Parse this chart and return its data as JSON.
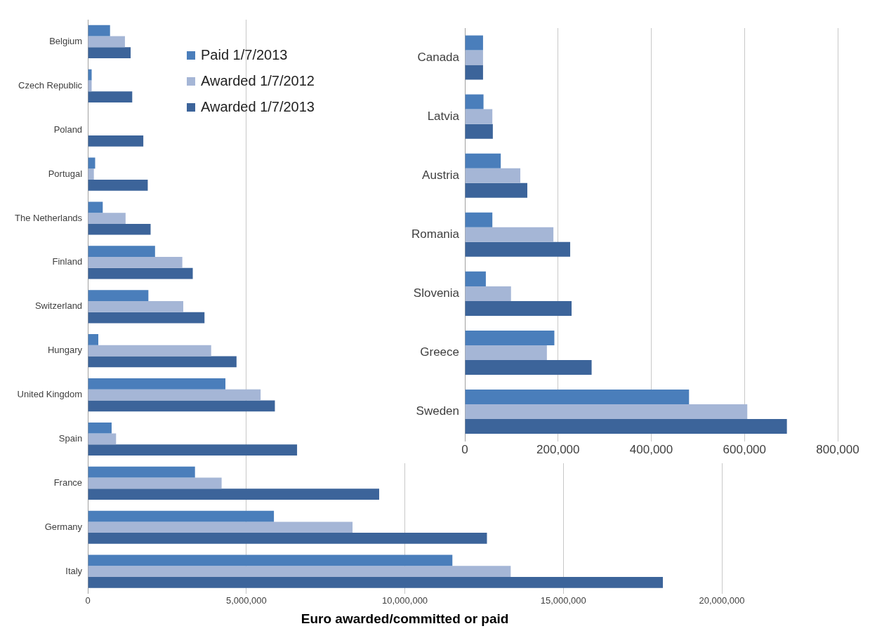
{
  "chart_data": [
    {
      "type": "bar",
      "orientation": "horizontal",
      "xlabel": "Euro awarded/committed or paid",
      "categories": [
        "Belgium",
        "Czech Republic",
        "Poland",
        "Portugal",
        "The Netherlands",
        "Finland",
        "Switzerland",
        "Hungary",
        "United Kingdom",
        "Spain",
        "France",
        "Germany",
        "Italy"
      ],
      "series": [
        {
          "name": "Paid 1/7/2013",
          "color": "#4a7ebb",
          "values": [
            700000,
            120000,
            null,
            230000,
            470000,
            2120000,
            1910000,
            330000,
            4340000,
            750000,
            3380000,
            5870000,
            11500000
          ]
        },
        {
          "name": "Awarded 1/7/2012",
          "color": "#a5b6d6",
          "values": [
            1170000,
            120000,
            null,
            190000,
            1190000,
            2980000,
            3010000,
            3890000,
            5450000,
            890000,
            4220000,
            8350000,
            13340000
          ]
        },
        {
          "name": "Awarded 1/7/2013",
          "color": "#3c649a",
          "values": [
            1350000,
            1400000,
            1750000,
            1890000,
            1980000,
            3310000,
            3680000,
            4690000,
            5900000,
            6600000,
            9190000,
            12590000,
            18140000
          ]
        }
      ],
      "xlim": [
        0,
        20000000
      ],
      "xticks": [
        0,
        {
          "value": 5000000,
          "label": "5,000,000"
        },
        {
          "value": 10000000,
          "label": "10,000,000"
        },
        {
          "value": 15000000,
          "label": "15,000,000"
        },
        {
          "value": 20000000,
          "label": "20,000,000"
        }
      ],
      "grid": "x",
      "legend": "top"
    },
    {
      "type": "bar",
      "orientation": "horizontal",
      "categories": [
        "Canada",
        "Latvia",
        "Austria",
        "Romania",
        "Slovenia",
        "Greece",
        "Sweden"
      ],
      "series": [
        {
          "color": "#4a7ebb",
          "values": [
            39000,
            40000,
            77000,
            59000,
            45000,
            192000,
            481000
          ]
        },
        {
          "color": "#a5b6d6",
          "values": [
            39000,
            59000,
            119000,
            190000,
            99000,
            176000,
            606000
          ]
        },
        {
          "color": "#3c649a",
          "values": [
            39000,
            60000,
            134000,
            226000,
            229000,
            272000,
            691000
          ]
        }
      ],
      "xlim": [
        0,
        800000
      ],
      "xticks": [
        0,
        {
          "value": 200000,
          "label": "200,000"
        },
        {
          "value": 400000,
          "label": "400,000"
        },
        {
          "value": 600000,
          "label": "600,000"
        },
        {
          "value": 800000,
          "label": "800,000"
        }
      ],
      "grid": "x"
    }
  ]
}
